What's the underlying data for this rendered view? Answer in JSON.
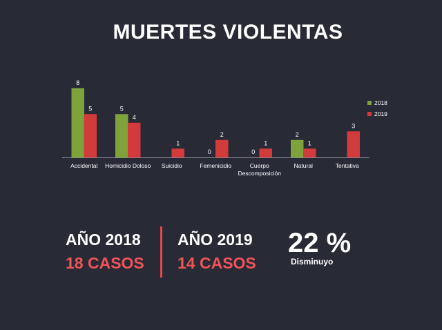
{
  "title": "MUERTES VIOLENTAS",
  "chart_data": {
    "type": "bar",
    "categories": [
      "Accidental",
      "Homicidio Doloso",
      "Suicidio",
      "Femenicidio",
      "Cuerpo Descomposición",
      "Natural",
      "Tentativa"
    ],
    "category_lines": [
      [
        "Accidental"
      ],
      [
        "Homicidio Doloso"
      ],
      [
        "Suicidio"
      ],
      [
        "Femenicidio"
      ],
      [
        "Cuerpo",
        "Descomposición"
      ],
      [
        "Natural"
      ],
      [
        "Tentativa"
      ]
    ],
    "series": [
      {
        "name": "2018",
        "color": "#7ea33a",
        "values": [
          8,
          5,
          null,
          0,
          0,
          2,
          null
        ]
      },
      {
        "name": "2019",
        "color": "#d23b3b",
        "values": [
          5,
          4,
          1,
          2,
          1,
          1,
          3
        ]
      }
    ],
    "ylim": [
      0,
      8
    ],
    "legend": "right",
    "xlabel": "",
    "ylabel": ""
  },
  "summary": {
    "y2018_label": "AÑO 2018",
    "y2018_value": "18 CASOS",
    "y2019_label": "AÑO 2019",
    "y2019_value": "14 CASOS",
    "percent": "22 %",
    "percent_note": "Disminuyo"
  }
}
